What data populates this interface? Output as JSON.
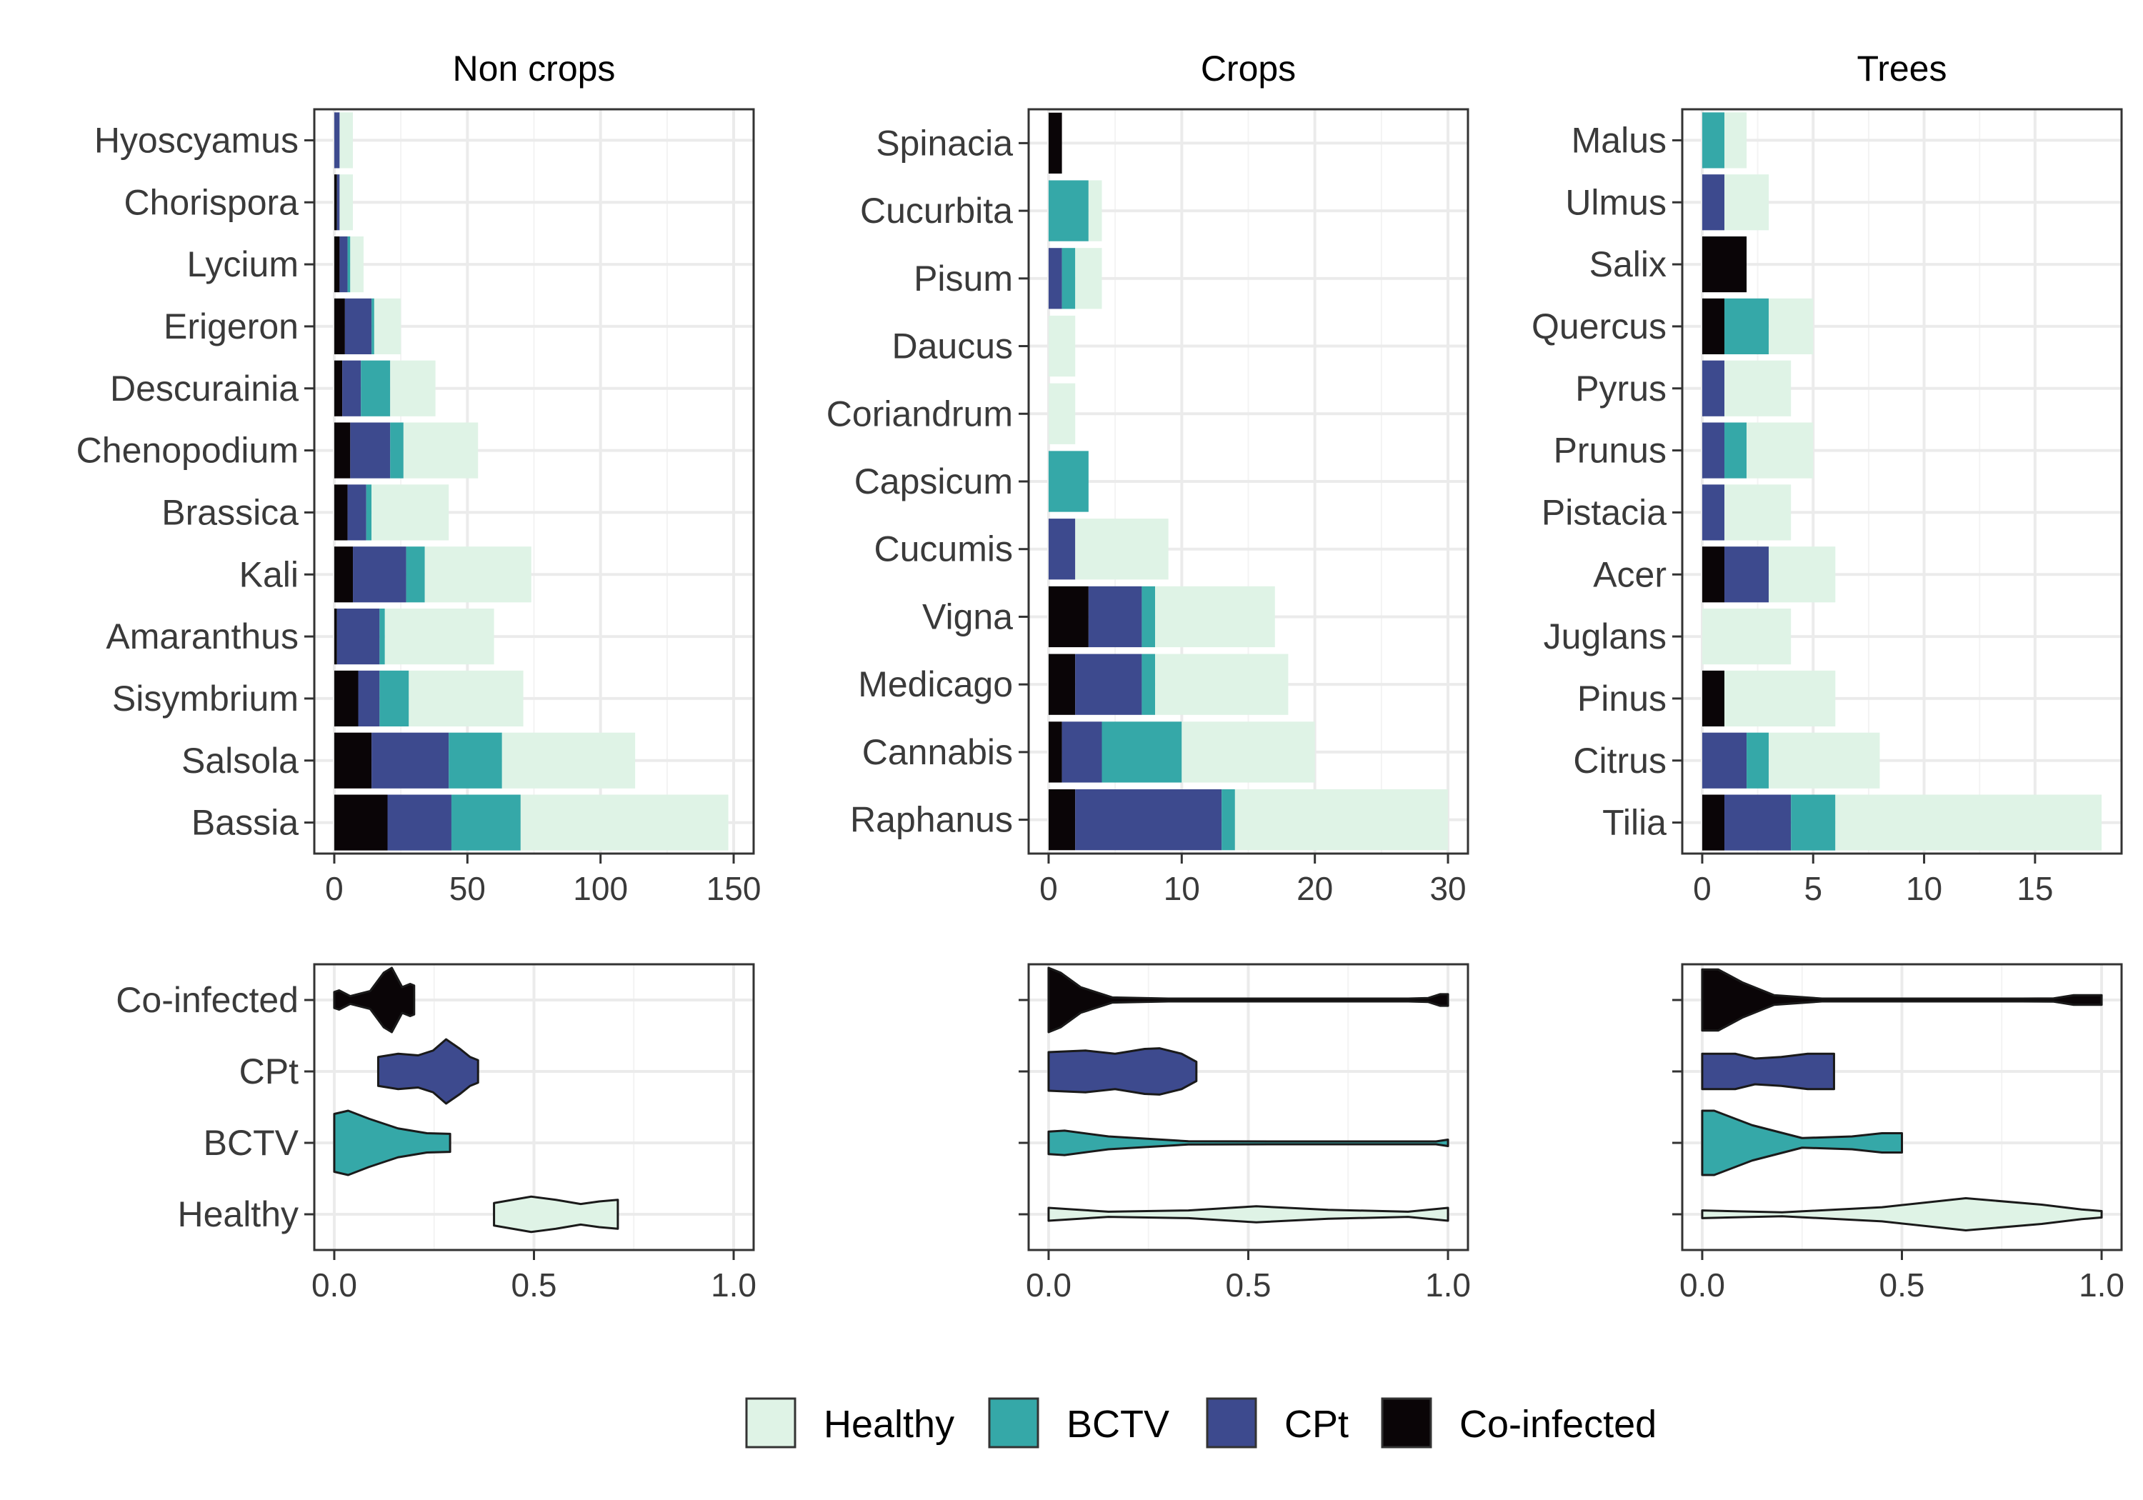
{
  "chart_data": [
    {
      "type": "bar",
      "stacked": true,
      "orientation": "horizontal",
      "title": "Non crops",
      "categories": [
        "Hyoscyamus",
        "Chorispora",
        "Lycium",
        "Erigeron",
        "Descurainia",
        "Chenopodium",
        "Brassica",
        "Kali",
        "Amaranthus",
        "Sisymbrium",
        "Salsola",
        "Bassia"
      ],
      "series": [
        {
          "name": "Co-infected",
          "values": [
            0,
            1,
            2,
            4,
            3,
            6,
            5,
            7,
            1,
            9,
            14,
            20
          ]
        },
        {
          "name": "CPt",
          "values": [
            2,
            1,
            3,
            10,
            7,
            15,
            7,
            20,
            16,
            8,
            29,
            24
          ]
        },
        {
          "name": "BCTV",
          "values": [
            0,
            0,
            1,
            1,
            11,
            5,
            2,
            7,
            2,
            11,
            20,
            26
          ]
        },
        {
          "name": "Healthy",
          "values": [
            5,
            5,
            5,
            10,
            17,
            28,
            29,
            40,
            41,
            43,
            50,
            78
          ]
        }
      ],
      "xlim": [
        0,
        150
      ],
      "xticks": [
        "0",
        "50",
        "100",
        "150"
      ],
      "grid": true
    },
    {
      "type": "bar",
      "stacked": true,
      "orientation": "horizontal",
      "title": "Crops",
      "categories": [
        "Spinacia",
        "Cucurbita",
        "Pisum",
        "Daucus",
        "Coriandrum",
        "Capsicum",
        "Cucumis",
        "Vigna",
        "Medicago",
        "Cannabis",
        "Raphanus"
      ],
      "series": [
        {
          "name": "Co-infected",
          "values": [
            1,
            0,
            0,
            0,
            0,
            0,
            0,
            3,
            2,
            1,
            2
          ]
        },
        {
          "name": "CPt",
          "values": [
            0,
            0,
            1,
            0,
            0,
            0,
            2,
            4,
            5,
            3,
            11
          ]
        },
        {
          "name": "BCTV",
          "values": [
            0,
            3,
            1,
            0,
            0,
            3,
            0,
            1,
            1,
            6,
            1
          ]
        },
        {
          "name": "Healthy",
          "values": [
            0,
            1,
            2,
            2,
            2,
            0,
            7,
            9,
            10,
            10,
            16
          ]
        }
      ],
      "xlim": [
        0,
        30
      ],
      "xticks": [
        "0",
        "10",
        "20",
        "30"
      ],
      "grid": true
    },
    {
      "type": "bar",
      "stacked": true,
      "orientation": "horizontal",
      "title": "Trees",
      "categories": [
        "Malus",
        "Ulmus",
        "Salix",
        "Quercus",
        "Pyrus",
        "Prunus",
        "Pistacia",
        "Acer",
        "Juglans",
        "Pinus",
        "Citrus",
        "Tilia"
      ],
      "series": [
        {
          "name": "Co-infected",
          "values": [
            0,
            0,
            2,
            1,
            0,
            0,
            0,
            1,
            0,
            1,
            0,
            1
          ]
        },
        {
          "name": "CPt",
          "values": [
            0,
            1,
            0,
            0,
            1,
            1,
            1,
            2,
            0,
            0,
            2,
            3
          ]
        },
        {
          "name": "BCTV",
          "values": [
            1,
            0,
            0,
            2,
            0,
            1,
            0,
            0,
            0,
            0,
            1,
            2
          ]
        },
        {
          "name": "Healthy",
          "values": [
            1,
            2,
            0,
            2,
            3,
            3,
            3,
            3,
            4,
            5,
            5,
            12
          ]
        }
      ],
      "xlim": [
        0,
        18
      ],
      "xticks": [
        "0",
        "5",
        "10",
        "15"
      ],
      "grid": true
    },
    {
      "type": "violin",
      "title": "",
      "categories": [
        "Co-infected",
        "CPt",
        "BCTV",
        "Healthy"
      ],
      "series": [
        {
          "name": "Co-infected",
          "range": [
            0.0,
            0.2
          ],
          "peak": 0.14
        },
        {
          "name": "CPt",
          "range": [
            0.11,
            0.36
          ],
          "peak": 0.26
        },
        {
          "name": "BCTV",
          "range": [
            0.0,
            0.29
          ],
          "peak": 0.03
        },
        {
          "name": "Healthy",
          "range": [
            0.4,
            0.71
          ],
          "peak": 0.5
        }
      ],
      "xlim": [
        0,
        1
      ],
      "xticks": [
        "0.0",
        "0.5",
        "1.0"
      ],
      "grid": true
    },
    {
      "type": "violin",
      "title": "",
      "categories": [
        "Co-infected",
        "CPt",
        "BCTV",
        "Healthy"
      ],
      "series": [
        {
          "name": "Co-infected",
          "range": [
            0.0,
            1.0
          ],
          "peak": 0.02
        },
        {
          "name": "CPt",
          "range": [
            0.0,
            0.37
          ],
          "peak": 0.25
        },
        {
          "name": "BCTV",
          "range": [
            0.0,
            1.0
          ],
          "peak": 0.03
        },
        {
          "name": "Healthy",
          "range": [
            0.0,
            1.0
          ],
          "peak": 0.52
        }
      ],
      "xlim": [
        0,
        1
      ],
      "xticks": [
        "0.0",
        "0.5",
        "1.0"
      ],
      "grid": true
    },
    {
      "type": "violin",
      "title": "",
      "categories": [
        "Co-infected",
        "CPt",
        "BCTV",
        "Healthy"
      ],
      "series": [
        {
          "name": "Co-infected",
          "range": [
            0.0,
            1.0
          ],
          "peak": 0.03
        },
        {
          "name": "CPt",
          "range": [
            0.0,
            0.33
          ],
          "peak": 0.1
        },
        {
          "name": "BCTV",
          "range": [
            0.0,
            0.5
          ],
          "peak": 0.03
        },
        {
          "name": "Healthy",
          "range": [
            0.0,
            1.0
          ],
          "peak": 0.66
        }
      ],
      "xlim": [
        0,
        1
      ],
      "xticks": [
        "0.0",
        "0.5",
        "1.0"
      ],
      "grid": true
    }
  ],
  "legend": {
    "placement": "bottom",
    "items": [
      {
        "label": "Healthy",
        "color": "#dff3e6"
      },
      {
        "label": "BCTV",
        "color": "#35a8a8"
      },
      {
        "label": "CPt",
        "color": "#3d4a8e"
      },
      {
        "label": "Co-infected",
        "color": "#0a0507"
      }
    ]
  },
  "colors": {
    "Healthy": "#dff3e6",
    "BCTV": "#35a8a8",
    "CPt": "#3d4a8e",
    "Co-infected": "#0a0507"
  }
}
